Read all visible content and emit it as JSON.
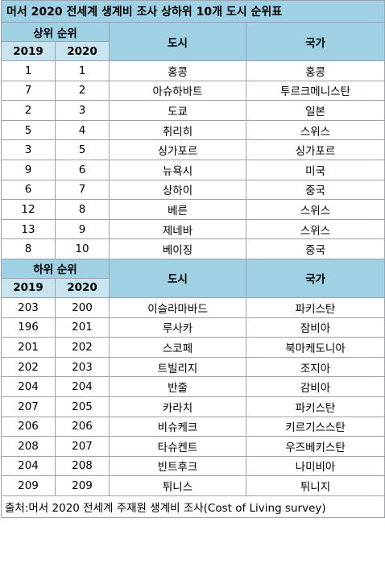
{
  "title": "머서 2020 전세계 생계비 조사 상하위 10개 도시 순위표",
  "top": {
    "rank_header": "상위 순위",
    "year1": "2019",
    "year2": "2020",
    "city_header": "도시",
    "country_header": "국가",
    "rows": [
      {
        "r2019": "1",
        "r2020": "1",
        "city": "홍콩",
        "country": "홍콩"
      },
      {
        "r2019": "7",
        "r2020": "2",
        "city": "아슈하바트",
        "country": "투르크메니스탄"
      },
      {
        "r2019": "2",
        "r2020": "3",
        "city": "도쿄",
        "country": "일본"
      },
      {
        "r2019": "5",
        "r2020": "4",
        "city": "취리히",
        "country": "스위스"
      },
      {
        "r2019": "3",
        "r2020": "5",
        "city": "싱가포르",
        "country": "싱가포르"
      },
      {
        "r2019": "9",
        "r2020": "6",
        "city": "뉴욕시",
        "country": "미국"
      },
      {
        "r2019": "6",
        "r2020": "7",
        "city": "상하이",
        "country": "중국"
      },
      {
        "r2019": "12",
        "r2020": "8",
        "city": "베른",
        "country": "스위스"
      },
      {
        "r2019": "13",
        "r2020": "9",
        "city": "제네바",
        "country": "스위스"
      },
      {
        "r2019": "8",
        "r2020": "10",
        "city": "베이징",
        "country": "중국"
      }
    ]
  },
  "bottom": {
    "rank_header": "하위 순위",
    "year1": "2019",
    "year2": "2020",
    "city_header": "도시",
    "country_header": "국가",
    "rows": [
      {
        "r2019": "203",
        "r2020": "200",
        "city": "이슬라마바드",
        "country": "파키스탄"
      },
      {
        "r2019": "196",
        "r2020": "201",
        "city": "루사카",
        "country": "잠비아"
      },
      {
        "r2019": "201",
        "r2020": "202",
        "city": "스코페",
        "country": "북마케도니아"
      },
      {
        "r2019": "202",
        "r2020": "203",
        "city": "트빌리지",
        "country": "조지아"
      },
      {
        "r2019": "204",
        "r2020": "204",
        "city": "반줄",
        "country": "감비아"
      },
      {
        "r2019": "207",
        "r2020": "205",
        "city": "카라치",
        "country": "파키스탄"
      },
      {
        "r2019": "206",
        "r2020": "206",
        "city": "비슈케크",
        "country": "키르기스스탄"
      },
      {
        "r2019": "208",
        "r2020": "207",
        "city": "타슈켄트",
        "country": "우즈베키스탄"
      },
      {
        "r2019": "204",
        "r2020": "208",
        "city": "빈트후크",
        "country": "나미비아"
      },
      {
        "r2019": "209",
        "r2020": "209",
        "city": "튀니스",
        "country": "튀니지"
      }
    ]
  },
  "source": "출처:머서 2020 전세계 주재원 생계비 조사(Cost of Living survey)"
}
